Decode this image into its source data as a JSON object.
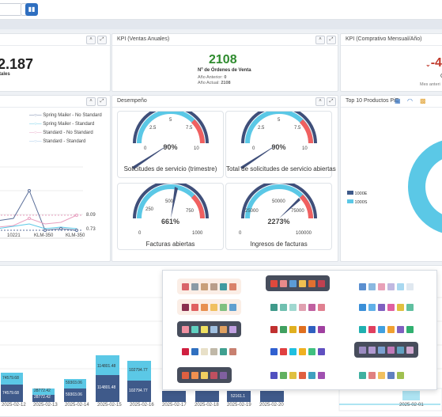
{
  "topbar": {
    "select_value": "",
    "icon_btn": "filter-icon",
    "chart_btn": "bar-chart-icon"
  },
  "kpi_total": {
    "value": "2.187",
    "label": "tales"
  },
  "kpi_annual": {
    "title": "KPI (Ventas Anuales)",
    "value": "2108",
    "caption": "Nº de Órdenes de Venta",
    "prev_label": "Año Anterior:",
    "prev_value": "0",
    "curr_label": "Año Actual:",
    "curr_value": "2108"
  },
  "kpi_compare": {
    "title": "KPI (Comprativo Mensual/Año)",
    "value": "-4",
    "sub1": "O",
    "sub2": "Mes anteri"
  },
  "linechart": {
    "legend": [
      "Spring Mailer - No Standard",
      "Spring Mailer - Standard",
      "Standard - No Standard",
      "Standard - Standard"
    ],
    "colors": [
      "#5b6f9a",
      "#5bc8e6",
      "#e8a0c0",
      "#9cc2e6"
    ],
    "x_labels": [
      "10221",
      "KLM-350",
      "KLM-350"
    ],
    "ref1": "8.09",
    "ref2": "0.73"
  },
  "desempeno": {
    "title": "Desempeño",
    "gauges": [
      {
        "label": "Solicitudes de servicio (trimestre)",
        "value": "90%",
        "ticks": [
          "0",
          "2.5",
          "5",
          "7.5",
          "10"
        ]
      },
      {
        "label": "Total de solicitudes de servicio abiertas",
        "value": "90%",
        "ticks": [
          "0",
          "2.5",
          "5",
          "7.5",
          "10"
        ]
      },
      {
        "label": "Facturas abiertas",
        "value": "661%",
        "ticks": [
          "0",
          "250",
          "500",
          "750",
          "1000"
        ]
      },
      {
        "label": "Ingresos de facturas",
        "value": "2273%",
        "ticks": [
          "0",
          "25000",
          "50000",
          "75000",
          "100000"
        ]
      }
    ]
  },
  "top10": {
    "title": "Top 10 Productos PiE",
    "legend": [
      "1000E",
      "1000S"
    ],
    "colors": [
      "#3f5a8a",
      "#5bc8e6"
    ]
  },
  "barchart": {
    "dates": [
      "2025-02-12",
      "2025-02-13",
      "2025-02-14",
      "2025-02-15",
      "2025-02-16",
      "2025-02-17",
      "2025-02-18",
      "2025-02-19",
      "2025-02-20",
      "2025-02-01"
    ],
    "labels_top": [
      "74579.68",
      "28772.42",
      "59303.06",
      "114801.48",
      "102794.77"
    ],
    "labels_bottom": [
      "74579.68",
      "28772.42",
      "59303.06",
      "114801.48",
      "102794.77",
      "52161.1"
    ]
  },
  "palettes": [
    [
      "#d9656a",
      "#8a9aa5",
      "#c9a07a",
      "#b99e8a",
      "#3f9aa0",
      "#d9826a"
    ],
    [
      "#e0493d",
      "#e88a8a",
      "#5b9bd5",
      "#f0c050",
      "#e07030",
      "#c04050"
    ],
    [
      "#5a8fd0",
      "#8ab8e0",
      "#e8a0b8",
      "#c0b8e0",
      "#a8d8f0",
      "#e0e8f0"
    ],
    [
      "#8a3050",
      "#e06060",
      "#e89050",
      "#f0c060",
      "#80c080",
      "#60a0d0"
    ],
    [
      "#3f9a8a",
      "#70c0b0",
      "#a0d8d0",
      "#e0a0b0",
      "#c060a0",
      "#e08090"
    ],
    [
      "#3a8fd8",
      "#60b0e8",
      "#8060c0",
      "#e060a0",
      "#e0c040",
      "#60c0a0"
    ],
    [
      "#f090a0",
      "#60d0c0",
      "#f0e060",
      "#a0c0e0",
      "#e0a060",
      "#c0a0e0"
    ],
    [
      "#c03030",
      "#40a060",
      "#e0b020",
      "#e07020",
      "#3060c0",
      "#a040a0"
    ],
    [
      "#20b0b0",
      "#e04060",
      "#40a0e0",
      "#f0a030",
      "#8060c0",
      "#30b070"
    ],
    [
      "#d02040",
      "#3070c0",
      "#e8e0c8",
      "#c0b8a8",
      "#40a090",
      "#c88070"
    ],
    [
      "#3060d0",
      "#e04040",
      "#20c0e0",
      "#f0b020",
      "#40c080",
      "#6050c0"
    ],
    [
      "#9a8ac0",
      "#b098d0",
      "#7aa0d0",
      "#c078b8",
      "#60a0c0",
      "#d0a8d0"
    ],
    [
      "#e06040",
      "#f09050",
      "#f0d060",
      "#c05060",
      "#8060a0"
    ],
    [
      "#5050c0",
      "#60b060",
      "#e0c040",
      "#e06040",
      "#40a0c0",
      "#a050b0"
    ],
    [
      "#3fb0a0",
      "#e08080",
      "#f0c060",
      "#6080c0",
      "#a0c050"
    ]
  ]
}
